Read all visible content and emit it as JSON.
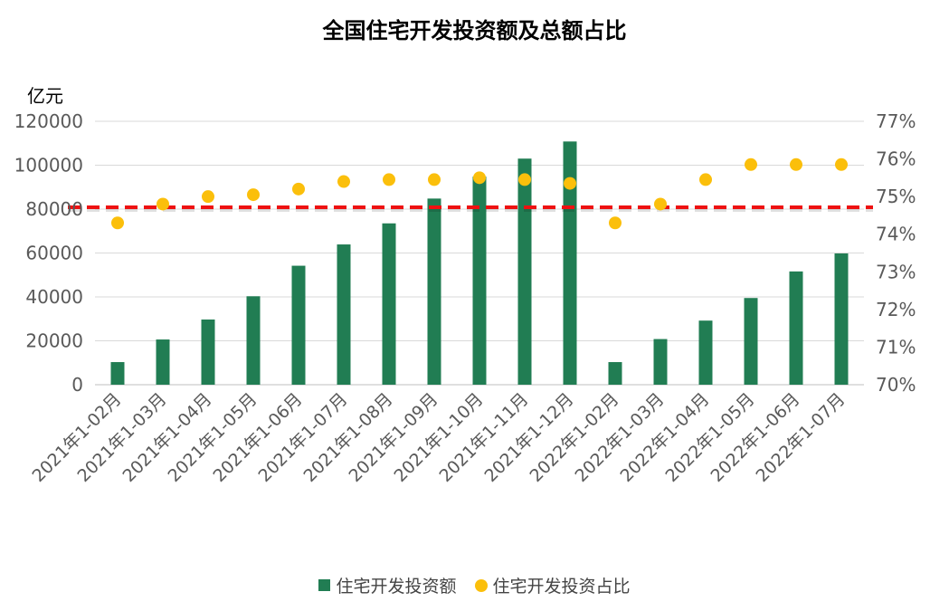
{
  "chart_data": {
    "type": "bar",
    "title": "全国住宅开发投资额及总额占比",
    "ylabel": "亿元",
    "ylim": [
      0,
      120000
    ],
    "y_ticks": [
      "0",
      "20000",
      "40000",
      "60000",
      "80000",
      "100000",
      "120000"
    ],
    "y2lim": [
      70,
      77
    ],
    "y2_ticks": [
      "70%",
      "71%",
      "72%",
      "73%",
      "74%",
      "75%",
      "76%",
      "77%"
    ],
    "grid": true,
    "legend_position": "bottom",
    "categories": [
      "2021年1-02月",
      "2021年1-03月",
      "2021年1-04月",
      "2021年1-05月",
      "2021年1-06月",
      "2021年1-07月",
      "2021年1-08月",
      "2021年1-09月",
      "2021年1-10月",
      "2021年1-11月",
      "2021年1-12月",
      "2022年1-02月",
      "2022年1-03月",
      "2022年1-04月",
      "2022年1-05月",
      "2022年1-06月",
      "2022年1-07月"
    ],
    "series": [
      {
        "name": "住宅开发投资额",
        "type": "bar",
        "axis": "left",
        "color": "#217d53",
        "values": [
          10300,
          20600,
          29700,
          40300,
          54200,
          63900,
          73500,
          84800,
          94800,
          103000,
          110800,
          10300,
          20800,
          29200,
          39500,
          51600,
          59800
        ]
      },
      {
        "name": "住宅开发投资占比",
        "type": "scatter",
        "axis": "right",
        "color": "#fbbf0b",
        "values": [
          74.3,
          74.8,
          75.0,
          75.05,
          75.2,
          75.4,
          75.45,
          75.45,
          75.5,
          75.45,
          75.35,
          74.3,
          74.8,
          75.45,
          75.85,
          75.85,
          75.85
        ]
      }
    ],
    "reference_line": {
      "value": 80800,
      "axis": "left",
      "style": "dashed",
      "color": "#ee1111"
    }
  }
}
